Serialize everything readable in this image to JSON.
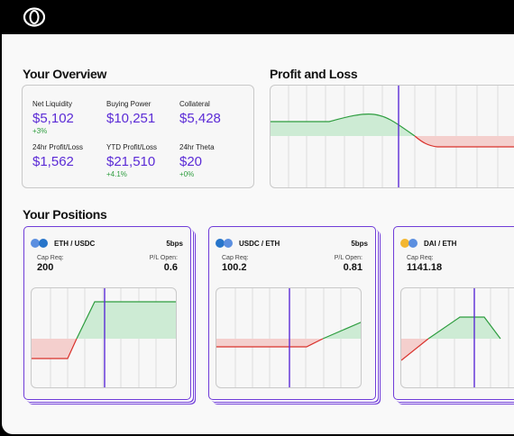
{
  "overview": {
    "title": "Your Overview",
    "stats": [
      {
        "label": "Net Liquidity",
        "value": "$5,102",
        "change": "+3%"
      },
      {
        "label": "Buying Power",
        "value": "$10,251",
        "change": ""
      },
      {
        "label": "Collateral",
        "value": "$5,428",
        "change": ""
      },
      {
        "label": "24hr Profit/Loss",
        "value": "$1,562",
        "change": ""
      },
      {
        "label": "YTD Profit/Loss",
        "value": "$21,510",
        "change": "+4.1%"
      },
      {
        "label": "24hr Theta",
        "value": "$20",
        "change": "+0%"
      }
    ]
  },
  "pnl": {
    "title": "Profit and Loss"
  },
  "positions": {
    "title": "Your Positions",
    "items": [
      {
        "pair": "ETH / USDC",
        "fee": "5bps",
        "cap_label": "Cap Req:",
        "cap_value": "200",
        "pl_label": "P/L Open:",
        "pl_value": "0.6"
      },
      {
        "pair": "USDC / ETH",
        "fee": "5bps",
        "cap_label": "Cap Req:",
        "cap_value": "100.2",
        "pl_label": "P/L Open:",
        "pl_value": "0.81"
      },
      {
        "pair": "DAI / ETH",
        "fee": "",
        "cap_label": "Cap Req:",
        "cap_value": "1141.18",
        "pl_label": "",
        "pl_value": ""
      }
    ]
  },
  "colors": {
    "accent": "#5b2bd6",
    "border": "#6f3cd8",
    "gain": "#2e9d3f",
    "gain_fill": "#cdebd4",
    "loss": "#d9312b",
    "loss_fill": "#f4cfcd"
  },
  "icons": {
    "logo": "app-logo-icon",
    "eth": "eth-token-icon",
    "usdc": "usdc-token-icon",
    "dai": "dai-token-icon"
  }
}
